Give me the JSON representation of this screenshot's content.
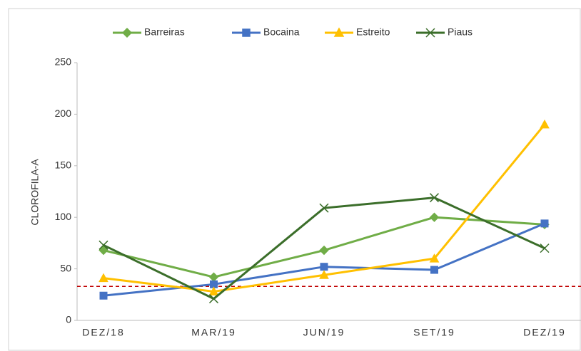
{
  "chart_data": {
    "type": "line",
    "y_label": "CLOROFILA-A",
    "categories": [
      "DEZ/18",
      "MAR/19",
      "JUN/19",
      "SET/19",
      "DEZ/19"
    ],
    "series": [
      {
        "name": "Barreiras",
        "color": "#70ad47",
        "marker": "diamond",
        "values": [
          68,
          42,
          68,
          100,
          93
        ]
      },
      {
        "name": "Bocaina",
        "color": "#4472c4",
        "marker": "square",
        "values": [
          24,
          35,
          52,
          49,
          94
        ]
      },
      {
        "name": "Estreito",
        "color": "#ffc000",
        "marker": "triangle",
        "values": [
          41,
          28,
          44,
          60,
          190
        ]
      },
      {
        "name": "Piaus",
        "color": "#3b6e2a",
        "marker": "x",
        "values": [
          73,
          21,
          109,
          119,
          70
        ]
      }
    ],
    "reference_line": {
      "value": 33,
      "color": "#c00000"
    },
    "ylim": [
      0,
      250
    ],
    "yticks": [
      0,
      50,
      100,
      150,
      200,
      250
    ],
    "legend": "top"
  }
}
